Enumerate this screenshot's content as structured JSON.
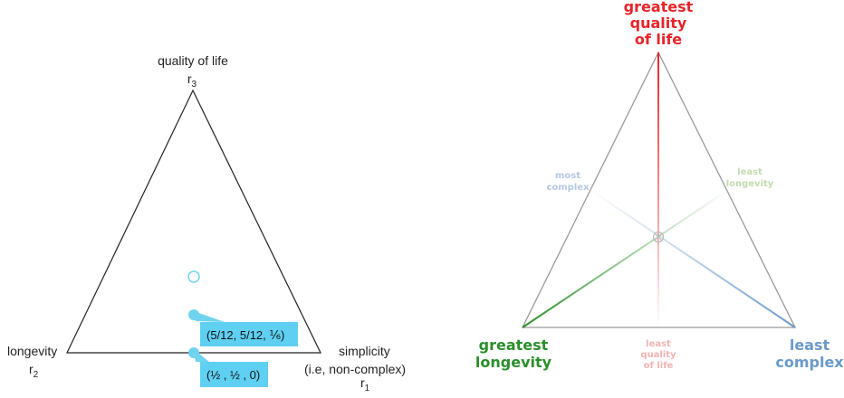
{
  "left_diagram": {
    "apex_top": {
      "label": "quality of life",
      "var": "r",
      "sub": "3"
    },
    "apex_left": {
      "label": "longevity",
      "var": "r",
      "sub": "2"
    },
    "apex_right": {
      "label_line1": "simplicity",
      "label_line2": "(i.e, non-complex)",
      "var": "r",
      "sub": "1"
    },
    "point_upper": {
      "text": "(5/12, 5/12, ⅙)"
    },
    "point_lower": {
      "text": "(½ , ½ , 0)"
    },
    "colors": {
      "point": "#6fd3f0",
      "callout": "#5fd0f2",
      "edge": "#222222"
    }
  },
  "right_diagram": {
    "top_label": [
      "greatest",
      "quality",
      "of life"
    ],
    "bottom_left_label": [
      "greatest",
      "longevity"
    ],
    "bottom_right_label": [
      "least",
      "complex"
    ],
    "left_edge_label": [
      "most",
      "complex"
    ],
    "right_edge_label": [
      "least",
      "longevity"
    ],
    "bottom_edge_label": [
      "least",
      "quality",
      "of life"
    ],
    "colors": {
      "quality": "#e8242a",
      "longevity": "#2a8f2a",
      "complex": "#6a9ac8",
      "quality_faint": "#f0b3b3",
      "longevity_faint": "#c3dcae",
      "complex_faint": "#b5c8e4",
      "edge": "#999999"
    }
  }
}
